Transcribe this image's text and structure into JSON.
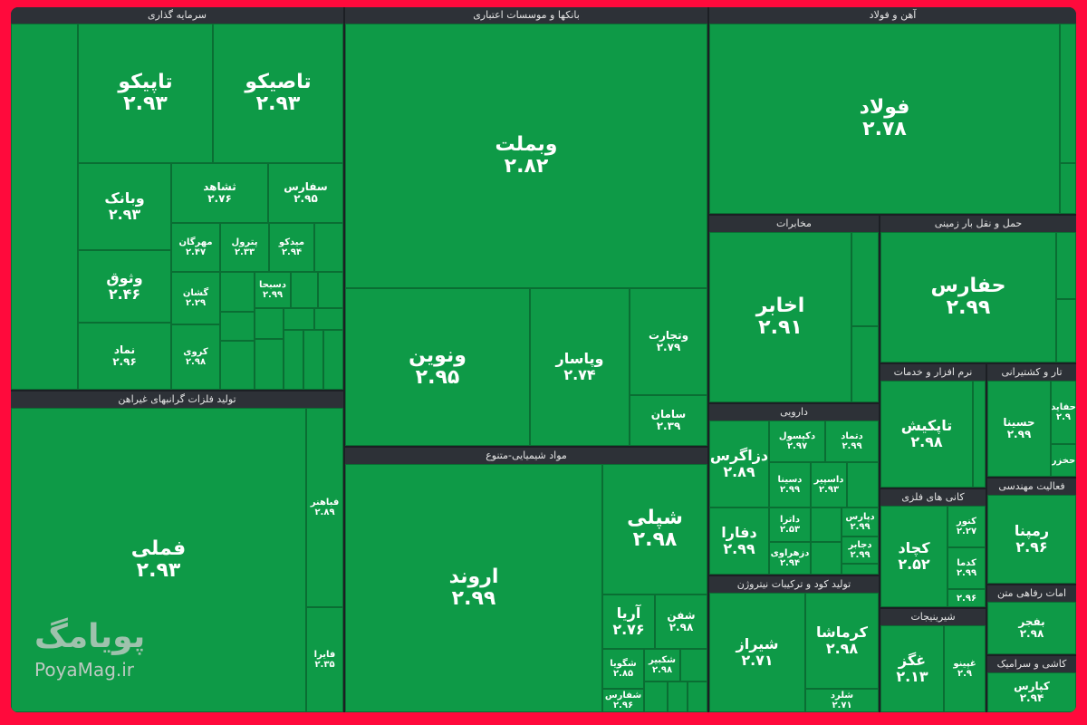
{
  "sectors": {
    "investment": "سرمایه گذاری",
    "banks": "بانکها و موسسات اعتباری",
    "steel": "آهن و فولاد",
    "telecom": "مخابرات",
    "transport": "حمل و نقل بار زمینی",
    "metals": "تولید فلزات گرانبهای غیراهن",
    "chemicals": "مواد شیمیایی-متنوع",
    "pharma": "دارویی",
    "software": "نرم افزار و خدمات",
    "shipping": "تار و کشتیرانی",
    "minerals": "کانی های فلزی",
    "engineering": "فعالیت مهندسی",
    "fertilizer": "تولید کود و ترکیبات نیتروژن",
    "sugar": "شیرینیجات",
    "welfare": "امات رفاهی متن",
    "ceramics": "کاشی و سرامیک"
  },
  "tiles": {
    "tapiko": {
      "name": "تاپیکو",
      "value": "۲.۹۳"
    },
    "tasiko": {
      "name": "تاصیکو",
      "value": "۲.۹۳"
    },
    "vabank": {
      "name": "وبانک",
      "value": "۲.۹۳"
    },
    "tshahed": {
      "name": "ثشاهد",
      "value": "۲.۷۶"
    },
    "sefars": {
      "name": "سفارس",
      "value": "۲.۹۵"
    },
    "mehrgan": {
      "name": "مهرگان",
      "value": "۲.۴۷"
    },
    "petrol": {
      "name": "پترول",
      "value": "۲.۳۳"
    },
    "midko": {
      "name": "میدکو",
      "value": "۲.۹۴"
    },
    "vothuq": {
      "name": "وثوق",
      "value": "۲.۴۶"
    },
    "gashan": {
      "name": "گشان",
      "value": "۲.۲۹"
    },
    "dasbha": {
      "name": "دسبحا",
      "value": "۲.۹۹"
    },
    "namad": {
      "name": "نماد",
      "value": "۲.۹۶"
    },
    "karvi": {
      "name": "کروی",
      "value": "۲.۹۸"
    },
    "vabmelat": {
      "name": "وبملت",
      "value": "۲.۸۲"
    },
    "vanovin": {
      "name": "ونوین",
      "value": "۲.۹۵"
    },
    "vapasar": {
      "name": "وپاسار",
      "value": "۲.۷۴"
    },
    "vatejarat": {
      "name": "وتجارت",
      "value": "۲.۷۹"
    },
    "saman": {
      "name": "سامان",
      "value": "۲.۳۹"
    },
    "foolad": {
      "name": "فولاد",
      "value": "۲.۷۸"
    },
    "akhaber": {
      "name": "اخابر",
      "value": "۲.۹۱"
    },
    "hafars": {
      "name": "حفارس",
      "value": "۲.۹۹"
    },
    "famali": {
      "name": "فملی",
      "value": "۲.۹۳"
    },
    "fabahonar": {
      "name": "فباهنر",
      "value": "۲.۸۹"
    },
    "faira": {
      "name": "فایرا",
      "value": "۲.۳۵"
    },
    "arvand": {
      "name": "اروند",
      "value": "۲.۹۹"
    },
    "shepli": {
      "name": "شپلی",
      "value": "۲.۹۸"
    },
    "arya": {
      "name": "آریا",
      "value": "۲.۷۶"
    },
    "shafan": {
      "name": "شفن",
      "value": "۲.۹۸"
    },
    "shegoya": {
      "name": "شگویا",
      "value": "۲.۸۵"
    },
    "shakbir": {
      "name": "شکبیر",
      "value": "۲.۹۸"
    },
    "shafars": {
      "name": "شفارس",
      "value": "۲.۹۶"
    },
    "dezagros": {
      "name": "دزاگرس",
      "value": "۲.۸۹"
    },
    "dkapsol": {
      "name": "دکپسول",
      "value": "۲.۹۷"
    },
    "dtamad": {
      "name": "دتماد",
      "value": "۲.۹۹"
    },
    "dsina": {
      "name": "دسینا",
      "value": "۲.۹۹"
    },
    "daspir": {
      "name": "داسپیر",
      "value": "۲.۹۳"
    },
    "dafara": {
      "name": "دفارا",
      "value": "۲.۹۹"
    },
    "dtara": {
      "name": "داترا",
      "value": "۲.۵۳"
    },
    "dzahravi": {
      "name": "دزهراوی",
      "value": "۲.۹۴"
    },
    "dapars": {
      "name": "دپارس",
      "value": "۲.۹۹"
    },
    "drr": {
      "name": "دجابر",
      "value": "۲.۹۹"
    },
    "taptkish": {
      "name": "تاپکیش",
      "value": "۲.۹۸"
    },
    "hasina": {
      "name": "حسینا",
      "value": "۲.۹۹"
    },
    "hafaid": {
      "name": "حفاید",
      "value": "۲.۹"
    },
    "hakhazar": {
      "name": "حخزر",
      "value": ""
    },
    "kechad": {
      "name": "کچاد",
      "value": "۲.۵۲"
    },
    "kenor": {
      "name": "کنور",
      "value": "۲.۲۷"
    },
    "kedma": {
      "name": "کدما",
      "value": "۲.۹۹"
    },
    "kmt": {
      "name": "",
      "value": "۲.۹۶"
    },
    "rampana": {
      "name": "رمپنا",
      "value": "۲.۹۶"
    },
    "shiraz": {
      "name": "شیراز",
      "value": "۲.۷۱"
    },
    "kermasha": {
      "name": "کرماشا",
      "value": "۲.۹۸"
    },
    "shelard": {
      "name": "شلرد",
      "value": "۲.۷۱"
    },
    "ghegaz": {
      "name": "غگز",
      "value": "۲.۱۳"
    },
    "ghpino": {
      "name": "غپینو",
      "value": "۲.۹"
    },
    "bafajr": {
      "name": "بفجر",
      "value": "۲.۹۸"
    },
    "kepars": {
      "name": "کپارس",
      "value": "۲.۹۴"
    }
  },
  "watermark": {
    "logo": "پویامگ",
    "url": "PoyaMag.ir"
  },
  "colors": {
    "tile_green": "#0e9a47",
    "header_bg": "#2d3137",
    "frame": "#ff0a3c"
  }
}
